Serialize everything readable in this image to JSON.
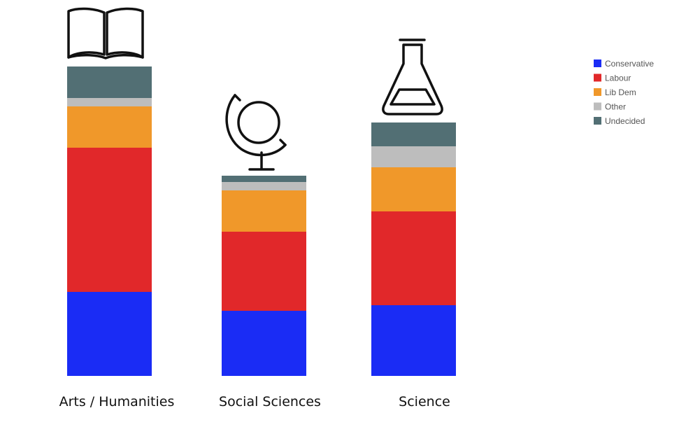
{
  "chart_data": {
    "type": "bar",
    "stacked": true,
    "categories": [
      "Arts / Humanities",
      "Social Sciences",
      "Science"
    ],
    "category_icons": [
      "open-book-icon",
      "globe-icon",
      "flask-icon"
    ],
    "series": [
      {
        "name": "Conservative",
        "color": "#1a2cf5",
        "values": [
          12.0,
          9.3,
          10.1
        ]
      },
      {
        "name": "Labour",
        "color": "#e1282a",
        "values": [
          20.6,
          11.3,
          13.4
        ]
      },
      {
        "name": "Lib Dem",
        "color": "#f0982a",
        "values": [
          5.9,
          5.9,
          6.3
        ]
      },
      {
        "name": "Other",
        "color": "#bdbdbd",
        "values": [
          1.2,
          1.2,
          3.0
        ]
      },
      {
        "name": "Undecided",
        "color": "#526f74",
        "values": [
          4.5,
          0.9,
          3.4
        ]
      }
    ],
    "title": "",
    "xlabel": "",
    "ylabel": "",
    "grid": false,
    "legend": "top-right"
  }
}
